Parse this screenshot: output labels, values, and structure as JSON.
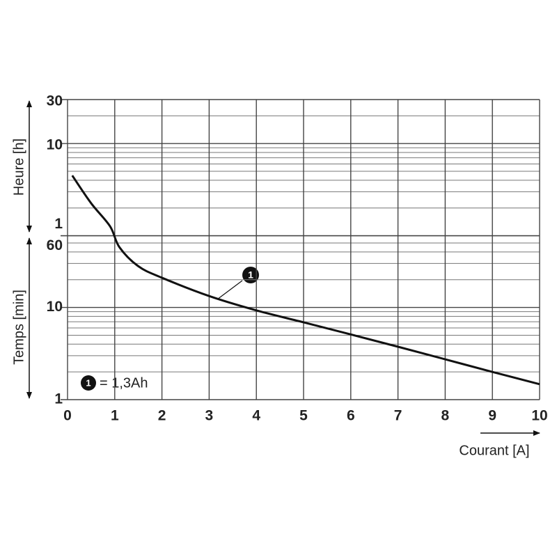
{
  "chart_data": {
    "type": "line",
    "x_label": "Courant [A]",
    "y_label": "Temps [min]",
    "y2_label": "Heure [h]",
    "x": [
      0.1,
      0.5,
      0.9,
      1.1,
      1.5,
      2,
      3,
      4,
      5,
      6,
      7,
      8,
      9,
      10
    ],
    "series": [
      {
        "name": "1",
        "color": "#111111",
        "values": [
          270,
          135,
          76,
          45,
          28,
          21,
          13.3,
          9.3,
          6.9,
          5.1,
          3.75,
          2.74,
          2.0,
          1.47
        ]
      }
    ],
    "legend_text": "= 1,3Ah",
    "xlim": [
      0,
      10
    ],
    "xticks": [
      0,
      1,
      2,
      3,
      4,
      5,
      6,
      7,
      8,
      9,
      10
    ],
    "ylim": [
      1,
      1800
    ],
    "log_y": true,
    "yticks": [
      1,
      10,
      60
    ],
    "y2lim": [
      1,
      1800
    ],
    "y2ticks": [
      {
        "value": 60,
        "label": "1"
      },
      {
        "value": 600,
        "label": "10"
      },
      {
        "value": 1800,
        "label": "30"
      }
    ],
    "minor_yticks": [
      2,
      3,
      4,
      5,
      6,
      7,
      8,
      9,
      20,
      30,
      40,
      50,
      120,
      180,
      240,
      300,
      360,
      420,
      480,
      540,
      1200
    ],
    "grid": true
  }
}
